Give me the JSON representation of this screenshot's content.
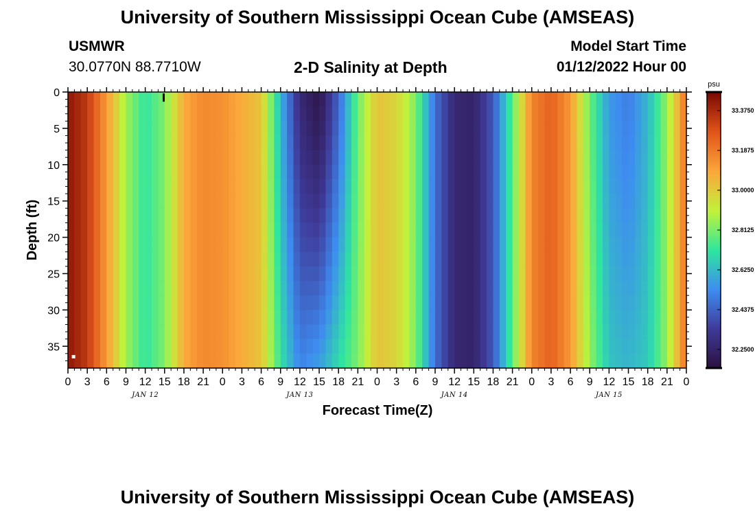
{
  "header": {
    "title": "University of Southern Mississippi Ocean Cube (AMSEAS)",
    "station": "USMWR",
    "coordinates": "30.0770N  88.7710W",
    "plot_title": "2-D Salinity at Depth",
    "model_start_label": "Model Start Time",
    "model_start_value": "01/12/2022 Hour 00"
  },
  "footer": {
    "title": "University of Southern Mississippi Ocean Cube (AMSEAS)"
  },
  "chart_data": {
    "type": "heatmap",
    "title": "2-D Salinity at Depth",
    "xlabel": "Forecast Time(Z)",
    "ylabel": "Depth (ft)",
    "x_unit": "hours since 01/12/2022 00Z",
    "x_range": [
      0,
      96
    ],
    "y_range": [
      0,
      38
    ],
    "x_tick_labels": [
      "0",
      "3",
      "6",
      "9",
      "12",
      "15",
      "18",
      "21",
      "0",
      "3",
      "6",
      "9",
      "12",
      "15",
      "18",
      "21",
      "0",
      "3",
      "6",
      "9",
      "12",
      "15",
      "18",
      "21",
      "0",
      "3",
      "6",
      "9",
      "12",
      "15",
      "18",
      "21",
      "0"
    ],
    "day_labels": [
      "JAN 12",
      "JAN 13",
      "JAN 14",
      "JAN 15"
    ],
    "y_ticks": [
      0,
      5,
      10,
      15,
      20,
      25,
      30,
      35
    ],
    "colorbar": {
      "unit": "psu",
      "range": [
        32.1625,
        33.4625
      ],
      "tick_labels": [
        "33.3750",
        "33.1875",
        "33.0000",
        "32.8125",
        "32.6250",
        "32.4375",
        "32.2500"
      ],
      "colors": [
        "#2a0f3e",
        "#3f3a98",
        "#3e8cf0",
        "#2ee6a0",
        "#c2f23a",
        "#fba73a",
        "#e2541a",
        "#7a0a04"
      ]
    },
    "surface_salinity_by_hour": {
      "hours": [
        0,
        3,
        6,
        9,
        12,
        15,
        18,
        21,
        24,
        27,
        30,
        33,
        36,
        39,
        42,
        45,
        48,
        51,
        54,
        57,
        60,
        63,
        66,
        69,
        72,
        75,
        78,
        81,
        84,
        87,
        90,
        93,
        96
      ],
      "values": [
        33.43,
        33.34,
        33.12,
        32.86,
        32.72,
        32.82,
        33.08,
        33.16,
        33.14,
        33.08,
        33.02,
        32.62,
        32.28,
        32.19,
        32.45,
        32.8,
        33.02,
        32.98,
        32.82,
        32.47,
        32.27,
        32.25,
        32.42,
        32.78,
        33.17,
        33.25,
        33.12,
        32.8,
        32.56,
        32.5,
        32.62,
        32.85,
        33.22
      ]
    },
    "deep_salinity_by_hour": {
      "hours": [
        0,
        3,
        6,
        9,
        12,
        15,
        18,
        21,
        24,
        27,
        30,
        33,
        36,
        39,
        42,
        45,
        48,
        51,
        54,
        57,
        60,
        63,
        66,
        69,
        72,
        75,
        78,
        81,
        84,
        87,
        90,
        93,
        96
      ],
      "values": [
        33.43,
        33.34,
        33.12,
        32.86,
        32.72,
        32.82,
        33.08,
        33.16,
        33.14,
        33.08,
        33.02,
        32.72,
        32.52,
        32.58,
        32.7,
        32.82,
        33.02,
        32.98,
        32.82,
        32.47,
        32.27,
        32.25,
        32.42,
        32.78,
        33.17,
        33.25,
        33.12,
        32.85,
        32.65,
        32.62,
        32.66,
        32.85,
        33.22
      ]
    }
  }
}
